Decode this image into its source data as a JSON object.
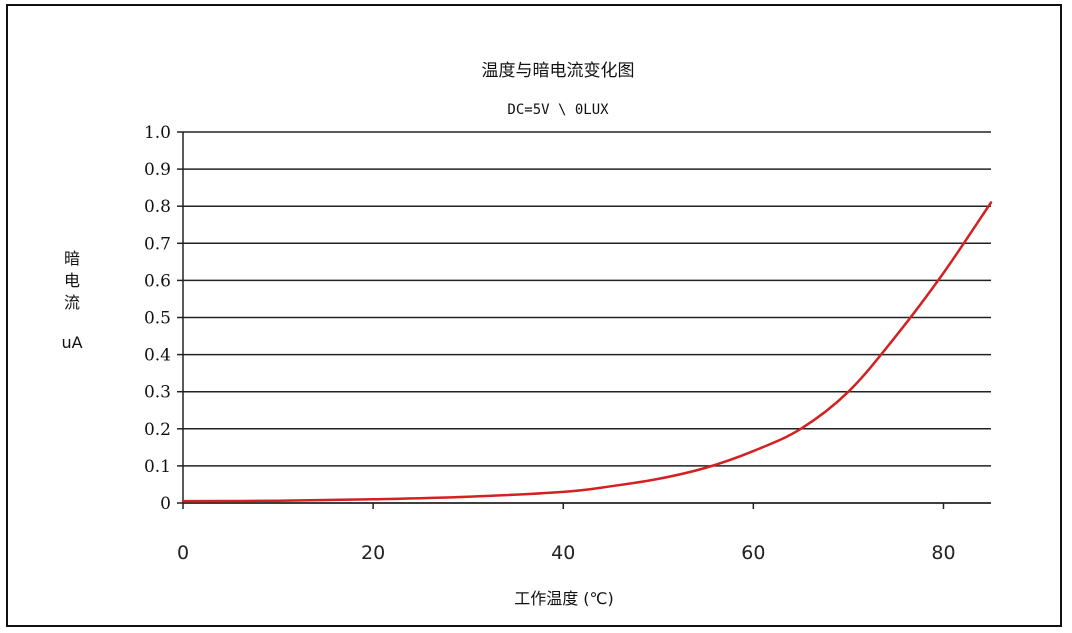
{
  "chart_data": {
    "type": "line",
    "title": "温度与暗电流变化图",
    "subtitle": "DC=5V \\ 0LUX",
    "xlabel": "工作温度 (℃)",
    "ylabel_lines": [
      "暗",
      "电",
      "流"
    ],
    "ylabel_unit": "uA",
    "xlim": [
      0,
      85
    ],
    "ylim": [
      0,
      1.0
    ],
    "x_ticks": [
      0,
      20,
      40,
      60,
      80
    ],
    "x_tick_labels": [
      "0",
      "20",
      "40",
      "60",
      "80"
    ],
    "y_ticks": [
      0,
      0.1,
      0.2,
      0.3,
      0.4,
      0.5,
      0.6,
      0.7,
      0.8,
      0.9,
      1.0
    ],
    "y_tick_labels": [
      "0",
      "0.1",
      "0.2",
      "0.3",
      "0.4",
      "0.5",
      "0.6",
      "0.7",
      "0.8",
      "0.9",
      "1.0"
    ],
    "grid": true,
    "series": [
      {
        "color": "#d42020",
        "x": [
          0,
          10,
          20,
          30,
          40,
          45,
          50,
          55,
          60,
          65,
          70,
          75,
          80,
          85
        ],
        "y": [
          0.005,
          0.006,
          0.01,
          0.017,
          0.03,
          0.045,
          0.065,
          0.095,
          0.14,
          0.2,
          0.3,
          0.45,
          0.62,
          0.81
        ]
      }
    ]
  }
}
